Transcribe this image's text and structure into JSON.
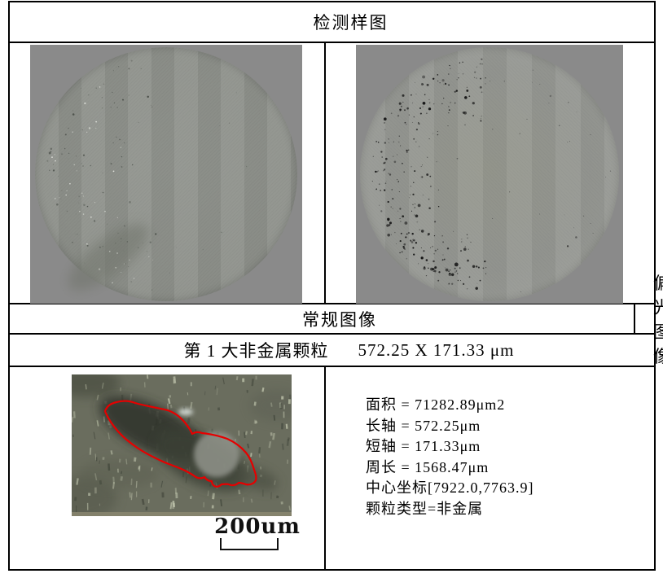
{
  "header": {
    "title": "检测样图"
  },
  "samples": {
    "left_caption": "常规图像",
    "right_caption": "偏光图像"
  },
  "particle": {
    "index_label": "第 1 大非金属颗粒",
    "size_label": "572.25 X 171.33 μm",
    "scale_bar": "200um",
    "stats": [
      "面积 = 71282.89μm2",
      "长轴 = 572.25μm",
      "短轴 = 171.33μm",
      "周长 = 1568.47μm",
      "中心坐标[7922.0,7763.9]",
      "颗粒类型=非金属"
    ]
  },
  "colors": {
    "table_border": "#000000",
    "sample_background": "#8a8a8a",
    "normal_wafer": "#90938e",
    "polarized_wafer": "#969893",
    "photo_background": "#6a6d5e",
    "particle_outline": "#e60000"
  }
}
